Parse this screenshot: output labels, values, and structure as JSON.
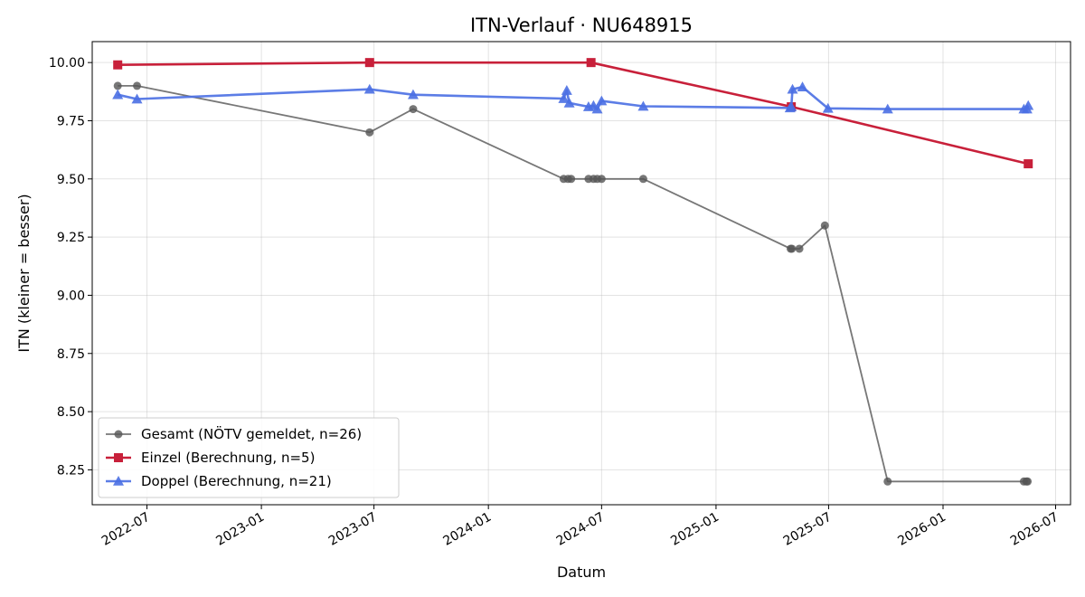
{
  "chart_data": {
    "type": "line",
    "title": "ITN-Verlauf · NU648915",
    "xlabel": "Datum",
    "ylabel": "ITN  (kleiner = besser)",
    "xlim": [
      "2022-04-04",
      "2026-07-25"
    ],
    "ylim": [
      8.1,
      10.09
    ],
    "x_ticks": [
      "2022-07-01",
      "2023-01-01",
      "2023-07-01",
      "2024-01-01",
      "2024-07-01",
      "2025-01-01",
      "2025-07-01",
      "2026-01-01",
      "2026-07-01"
    ],
    "x_tick_labels": [
      "2022-07",
      "2023-01",
      "2023-07",
      "2024-01",
      "2024-07",
      "2025-01",
      "2025-07",
      "2026-01",
      "2026-07"
    ],
    "y_ticks": [
      8.25,
      8.5,
      8.75,
      9.0,
      9.25,
      9.5,
      9.75,
      10.0
    ],
    "y_tick_labels": [
      "8.25",
      "8.50",
      "8.75",
      "9.00",
      "9.25",
      "9.50",
      "9.75",
      "10.00"
    ],
    "grid": true,
    "legend_position": "lower-left",
    "series": [
      {
        "name": "Gesamt (NÖTV gemeldet, n=26)",
        "color": "#555555",
        "marker": "circle",
        "x": [
          "2022-05-15",
          "2022-06-15",
          "2023-06-24",
          "2023-09-02",
          "2024-05-01",
          "2024-05-08",
          "2024-05-13",
          "2024-06-10",
          "2024-06-18",
          "2024-06-24",
          "2024-07-01",
          "2024-09-06",
          "2025-05-01",
          "2025-05-03",
          "2025-05-15",
          "2025-06-25",
          "2025-10-04",
          "2026-05-11",
          "2026-05-15",
          "2026-05-17"
        ],
        "y": [
          9.9,
          9.9,
          9.7,
          9.8,
          9.5,
          9.5,
          9.5,
          9.5,
          9.5,
          9.5,
          9.5,
          9.5,
          9.2,
          9.2,
          9.2,
          9.3,
          8.2,
          8.2,
          8.2,
          8.2
        ]
      },
      {
        "name": "Einzel (Berechnung, n=5)",
        "color": "#c8203a",
        "marker": "square",
        "x": [
          "2022-05-15",
          "2023-06-24",
          "2024-06-14",
          "2025-05-02",
          "2026-05-18"
        ],
        "y": [
          9.99,
          10.0,
          10.0,
          9.81,
          9.565
        ]
      },
      {
        "name": "Doppel (Berechnung, n=21)",
        "color": "#4a6fe3",
        "marker": "triangle",
        "x": [
          "2022-05-15",
          "2022-06-15",
          "2023-06-24",
          "2023-09-02",
          "2024-05-01",
          "2024-05-06",
          "2024-05-10",
          "2024-06-10",
          "2024-06-18",
          "2024-06-24",
          "2024-07-01",
          "2024-09-06",
          "2025-04-30",
          "2025-05-02",
          "2025-05-04",
          "2025-05-20",
          "2025-06-30",
          "2025-10-04",
          "2026-05-11",
          "2026-05-16",
          "2026-05-18"
        ],
        "y": [
          9.862,
          9.843,
          9.885,
          9.862,
          9.845,
          9.88,
          9.826,
          9.81,
          9.815,
          9.8,
          9.835,
          9.812,
          9.805,
          9.81,
          9.885,
          9.895,
          9.803,
          9.8,
          9.8,
          9.8,
          9.815
        ]
      }
    ]
  }
}
